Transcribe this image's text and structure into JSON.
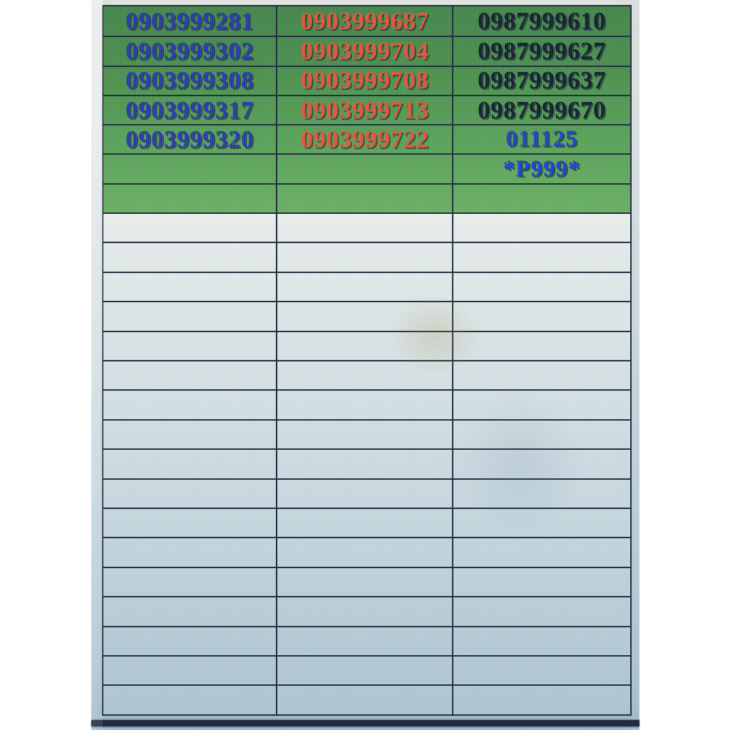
{
  "photo": {
    "description": "photographed spreadsheet listing SIM phone numbers",
    "header_section_background": "green",
    "body_section_background": "light blue-gray, empty rows"
  },
  "table": {
    "columns": 3,
    "header_rows": [
      {
        "cells": [
          {
            "text": "0903999281",
            "color": "blue"
          },
          {
            "text": "0903999687",
            "color": "red"
          },
          {
            "text": "0987999610",
            "color": "navy"
          }
        ]
      },
      {
        "cells": [
          {
            "text": "0903999302",
            "color": "blue"
          },
          {
            "text": "0903999704",
            "color": "red"
          },
          {
            "text": "0987999627",
            "color": "navy"
          }
        ]
      },
      {
        "cells": [
          {
            "text": "0903999308",
            "color": "blue"
          },
          {
            "text": "0903999708",
            "color": "red"
          },
          {
            "text": "0987999637",
            "color": "navy"
          }
        ]
      },
      {
        "cells": [
          {
            "text": "0903999317",
            "color": "blue"
          },
          {
            "text": "0903999713",
            "color": "red"
          },
          {
            "text": "0987999670",
            "color": "navy"
          }
        ]
      },
      {
        "cells": [
          {
            "text": "0903999320",
            "color": "blue"
          },
          {
            "text": "0903999722",
            "color": "red"
          },
          {
            "text": "011125",
            "color": "bright_blue"
          }
        ]
      },
      {
        "cells": [
          {
            "text": "",
            "color": "blue"
          },
          {
            "text": "",
            "color": "red"
          },
          {
            "text": "*P999*",
            "color": "bright_blue"
          }
        ]
      },
      {
        "cells": [
          {
            "text": "",
            "color": "blue"
          },
          {
            "text": "",
            "color": "red"
          },
          {
            "text": "",
            "color": "navy"
          }
        ]
      }
    ],
    "empty_body_rows": 17
  },
  "colors": {
    "blue": "#2839b0",
    "red": "#e2553c",
    "navy": "#141f33",
    "bright_blue": "#1e43cf",
    "green_top": "#44864a",
    "green_bottom": "#69af63",
    "grid_line": "#1e2b3c",
    "cell_top": "#e9edec",
    "cell_bottom": "#aec6d3"
  }
}
